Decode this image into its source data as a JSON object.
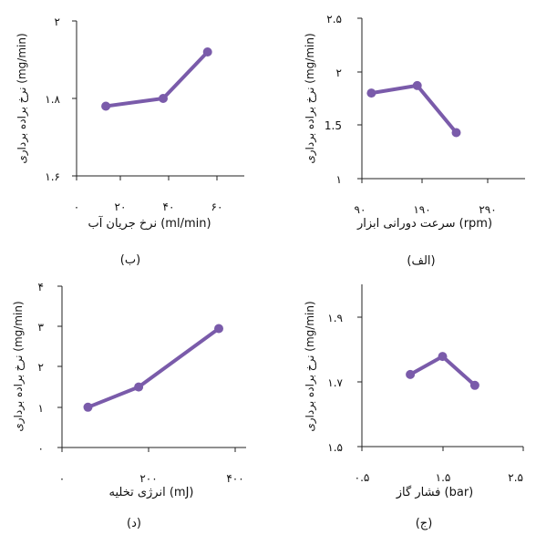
{
  "colors": {
    "series": "#7A5BAA",
    "axis": "#222222"
  },
  "chart_data": [
    {
      "type": "line",
      "id": "b",
      "caption": "(ب)",
      "ylabel": "نرخ براده برداری (mg/min)",
      "xlabel": "نرخ جریان آب (ml/min)",
      "xlim": [
        0,
        60
      ],
      "ylim": [
        1.6,
        2.0
      ],
      "xticks": [
        "۰",
        "۲۰",
        "۴۰",
        "۶۰"
      ],
      "yticks": [
        "۱.۶",
        "۱.۸",
        "۲"
      ],
      "x": [
        12.5,
        37,
        56
      ],
      "values": [
        1.78,
        1.8,
        1.92
      ]
    },
    {
      "type": "line",
      "id": "alef",
      "caption": "(الف)",
      "ylabel": "نرخ براده برداری (mg/min)",
      "xlabel": "سرعت دورانی ابزار (rpm)",
      "xlim": [
        90,
        290
      ],
      "ylim": [
        1.0,
        2.5
      ],
      "xticks": [
        "۹۰",
        "۱۹۰",
        "۲۹۰"
      ],
      "yticks": [
        "۱",
        "1.5",
        "۲",
        "۲.۵"
      ],
      "x": [
        105,
        178,
        240
      ],
      "values": [
        1.8,
        1.87,
        1.43
      ]
    },
    {
      "type": "line",
      "id": "dal",
      "caption": "(د)",
      "ylabel": "نرخ براده برداری (mg/min)",
      "xlabel": "انرژی تخلیه (mJ)",
      "xlim": [
        0,
        400
      ],
      "ylim": [
        0,
        4
      ],
      "xticks": [
        "۰",
        "۲۰۰",
        "۴۰۰"
      ],
      "yticks": [
        "۰",
        "۱",
        "۲",
        "۳",
        "۴"
      ],
      "x": [
        60,
        177,
        362
      ],
      "values": [
        1.0,
        1.5,
        2.95
      ]
    },
    {
      "type": "line",
      "id": "jim",
      "caption": "(ج)",
      "ylabel": "نرخ براده برداری (mg/min)",
      "xlabel": "فشار گاز (bar)",
      "xlim": [
        0.5,
        2.5
      ],
      "ylim": [
        1.5,
        1.95
      ],
      "xticks": [
        "۰.۵",
        "۱.۵",
        "۲.۵"
      ],
      "yticks": [
        "۱.۵",
        "۱.۷",
        "۱.۹"
      ],
      "x": [
        1.1,
        1.5,
        1.9
      ],
      "values": [
        1.7,
        1.75,
        1.67
      ]
    }
  ]
}
